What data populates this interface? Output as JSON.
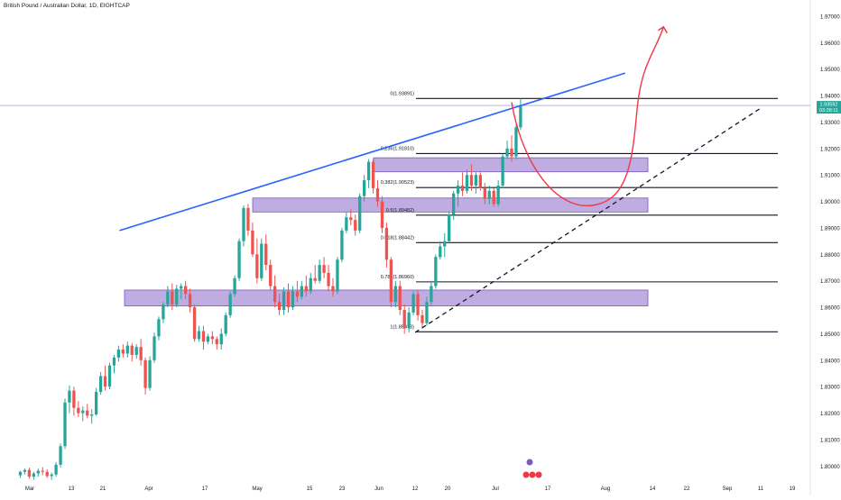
{
  "chart_data": {
    "type": "candlestick",
    "title": "British Pound / Australian Dollar, 1D, EIGHTCAP",
    "ylim": [
      1.795,
      1.975
    ],
    "y_ticks": [
      "1.80000",
      "1.81000",
      "1.82000",
      "1.83000",
      "1.84000",
      "1.85000",
      "1.86000",
      "1.87000",
      "1.88000",
      "1.89000",
      "1.90000",
      "1.91000",
      "1.92000",
      "1.93000",
      "1.94000",
      "1.95000",
      "1.96000",
      "1.97000"
    ],
    "x_ticks": [
      "Mar",
      "13",
      "21",
      "Apr",
      "17",
      "May",
      "15",
      "23",
      "Jun",
      "12",
      "20",
      "Jul",
      "17",
      "Aug",
      "14",
      "22",
      "Sep",
      "11",
      "19"
    ],
    "last_price": {
      "price": "1.93592",
      "countdown": "03:28:11"
    },
    "fibonacci_levels": [
      {
        "label": "0(1.93891)",
        "value": 1.93891
      },
      {
        "label": "0.236(1.91810)",
        "value": 1.9181
      },
      {
        "label": "0.382(1.90523)",
        "value": 1.90523
      },
      {
        "label": "0.5(1.89482)",
        "value": 1.89482
      },
      {
        "label": "0.618(1.88442)",
        "value": 1.88442
      },
      {
        "label": "0.786(1.86960)",
        "value": 1.8696
      },
      {
        "label": "1(1.85073)",
        "value": 1.85073
      }
    ],
    "zones": [
      {
        "from": 1.8605,
        "to": 1.8665
      },
      {
        "from": 1.896,
        "to": 1.9013
      },
      {
        "from": 1.9112,
        "to": 1.9165
      }
    ],
    "annotations": {
      "resistance_trendline": {
        "from": [
          1,
          1.889
        ],
        "to": [
          133,
          1.9485
        ]
      },
      "support_trendline": {
        "from": [
          87,
          1.8505
        ],
        "to": [
          166,
          1.9355
        ]
      },
      "projection_curve": [
        [
          110,
          1.9375
        ],
        [
          120,
          1.906
        ],
        [
          128,
          1.8985
        ],
        [
          137,
          1.92
        ],
        [
          144,
          1.966
        ]
      ],
      "target_arrowhead": [
        144,
        1.966
      ]
    },
    "candles": [
      [
        1.7965,
        1.7982,
        1.7955,
        1.7978
      ],
      [
        1.7978,
        1.7991,
        1.7968,
        1.7985
      ],
      [
        1.7985,
        1.7994,
        1.7952,
        1.796
      ],
      [
        1.796,
        1.7978,
        1.7948,
        1.7972
      ],
      [
        1.7972,
        1.799,
        1.796,
        1.7982
      ],
      [
        1.7982,
        1.7996,
        1.7965,
        1.7978
      ],
      [
        1.7978,
        1.7988,
        1.7955,
        1.7962
      ],
      [
        1.7962,
        1.7975,
        1.7948,
        1.7968
      ],
      [
        1.7968,
        1.8015,
        1.796,
        1.8005
      ],
      [
        1.8005,
        1.8085,
        1.7995,
        1.8075
      ],
      [
        1.8075,
        1.8255,
        1.8065,
        1.824
      ],
      [
        1.824,
        1.8305,
        1.82,
        1.8285
      ],
      [
        1.8285,
        1.83,
        1.819,
        1.822
      ],
      [
        1.822,
        1.8245,
        1.8185,
        1.82
      ],
      [
        1.82,
        1.8225,
        1.817,
        1.821
      ],
      [
        1.821,
        1.8235,
        1.818,
        1.819
      ],
      [
        1.819,
        1.8215,
        1.816,
        1.8195
      ],
      [
        1.8195,
        1.8295,
        1.819,
        1.828
      ],
      [
        1.828,
        1.8355,
        1.827,
        1.834
      ],
      [
        1.834,
        1.838,
        1.8285,
        1.83
      ],
      [
        1.83,
        1.839,
        1.829,
        1.838
      ],
      [
        1.838,
        1.842,
        1.835,
        1.841
      ],
      [
        1.841,
        1.8455,
        1.8395,
        1.844
      ],
      [
        1.844,
        1.846,
        1.841,
        1.8425
      ],
      [
        1.8425,
        1.847,
        1.841,
        1.8455
      ],
      [
        1.8455,
        1.8465,
        1.8395,
        1.842
      ],
      [
        1.842,
        1.846,
        1.8405,
        1.845
      ],
      [
        1.845,
        1.848,
        1.838,
        1.84
      ],
      [
        1.84,
        1.841,
        1.827,
        1.8295
      ],
      [
        1.8295,
        1.8415,
        1.8285,
        1.84
      ],
      [
        1.84,
        1.8505,
        1.839,
        1.849
      ],
      [
        1.849,
        1.8565,
        1.8475,
        1.8555
      ],
      [
        1.8555,
        1.862,
        1.854,
        1.861
      ],
      [
        1.861,
        1.868,
        1.86,
        1.866
      ],
      [
        1.866,
        1.869,
        1.859,
        1.861
      ],
      [
        1.861,
        1.8685,
        1.86,
        1.867
      ],
      [
        1.867,
        1.869,
        1.863,
        1.868
      ],
      [
        1.868,
        1.87,
        1.863,
        1.865
      ],
      [
        1.865,
        1.867,
        1.858,
        1.86
      ],
      [
        1.86,
        1.861,
        1.847,
        1.848
      ],
      [
        1.848,
        1.853,
        1.847,
        1.851
      ],
      [
        1.851,
        1.853,
        1.844,
        1.847
      ],
      [
        1.847,
        1.85,
        1.846,
        1.849
      ],
      [
        1.849,
        1.851,
        1.846,
        1.848
      ],
      [
        1.848,
        1.849,
        1.844,
        1.846
      ],
      [
        1.846,
        1.852,
        1.844,
        1.85
      ],
      [
        1.85,
        1.858,
        1.849,
        1.857
      ],
      [
        1.857,
        1.866,
        1.856,
        1.865
      ],
      [
        1.865,
        1.872,
        1.864,
        1.871
      ],
      [
        1.871,
        1.886,
        1.87,
        1.885
      ],
      [
        1.885,
        1.8985,
        1.883,
        1.8975
      ],
      [
        1.8975,
        1.899,
        1.887,
        1.889
      ],
      [
        1.889,
        1.892,
        1.879,
        1.88
      ],
      [
        1.88,
        1.886,
        1.869,
        1.871
      ],
      [
        1.871,
        1.886,
        1.87,
        1.884
      ],
      [
        1.884,
        1.8875,
        1.874,
        1.876
      ],
      [
        1.876,
        1.878,
        1.8665,
        1.868
      ],
      [
        1.868,
        1.872,
        1.86,
        1.862
      ],
      [
        1.862,
        1.865,
        1.857,
        1.859
      ],
      [
        1.859,
        1.8675,
        1.857,
        1.866
      ],
      [
        1.866,
        1.869,
        1.858,
        1.86
      ],
      [
        1.86,
        1.868,
        1.859,
        1.866
      ],
      [
        1.866,
        1.87,
        1.862,
        1.864
      ],
      [
        1.864,
        1.87,
        1.863,
        1.868
      ],
      [
        1.868,
        1.872,
        1.864,
        1.866
      ],
      [
        1.866,
        1.873,
        1.865,
        1.871
      ],
      [
        1.871,
        1.876,
        1.869,
        1.87
      ],
      [
        1.87,
        1.878,
        1.869,
        1.876
      ],
      [
        1.876,
        1.879,
        1.871,
        1.873
      ],
      [
        1.873,
        1.876,
        1.866,
        1.868
      ],
      [
        1.868,
        1.871,
        1.864,
        1.866
      ],
      [
        1.866,
        1.879,
        1.865,
        1.878
      ],
      [
        1.878,
        1.89,
        1.877,
        1.889
      ],
      [
        1.889,
        1.896,
        1.888,
        1.894
      ],
      [
        1.894,
        1.897,
        1.891,
        1.893
      ],
      [
        1.893,
        1.895,
        1.887,
        1.889
      ],
      [
        1.889,
        1.903,
        1.888,
        1.902
      ],
      [
        1.902,
        1.91,
        1.9,
        1.908
      ],
      [
        1.908,
        1.916,
        1.905,
        1.915
      ],
      [
        1.915,
        1.916,
        1.903,
        1.905
      ],
      [
        1.905,
        1.908,
        1.898,
        1.9
      ],
      [
        1.9,
        1.902,
        1.888,
        1.89
      ],
      [
        1.89,
        1.892,
        1.875,
        1.878
      ],
      [
        1.878,
        1.879,
        1.86,
        1.862
      ],
      [
        1.862,
        1.87,
        1.86,
        1.868
      ],
      [
        1.868,
        1.87,
        1.857,
        1.859
      ],
      [
        1.859,
        1.861,
        1.85,
        1.852
      ],
      [
        1.852,
        1.86,
        1.8505,
        1.858
      ],
      [
        1.858,
        1.866,
        1.857,
        1.865
      ],
      [
        1.865,
        1.8665,
        1.855,
        1.857
      ],
      [
        1.857,
        1.859,
        1.852,
        1.854
      ],
      [
        1.854,
        1.864,
        1.853,
        1.862
      ],
      [
        1.862,
        1.87,
        1.861,
        1.868
      ],
      [
        1.868,
        1.88,
        1.867,
        1.879
      ],
      [
        1.879,
        1.885,
        1.878,
        1.883
      ],
      [
        1.883,
        1.888,
        1.879,
        1.885
      ],
      [
        1.885,
        1.896,
        1.884,
        1.895
      ],
      [
        1.895,
        1.904,
        1.893,
        1.903
      ],
      [
        1.903,
        1.908,
        1.898,
        1.906
      ],
      [
        1.906,
        1.911,
        1.902,
        1.904
      ],
      [
        1.904,
        1.912,
        1.903,
        1.91
      ],
      [
        1.91,
        1.914,
        1.904,
        1.906
      ],
      [
        1.906,
        1.911,
        1.903,
        1.91
      ],
      [
        1.91,
        1.911,
        1.904,
        1.905
      ],
      [
        1.905,
        1.907,
        1.899,
        1.901
      ],
      [
        1.901,
        1.906,
        1.899,
        1.904
      ],
      [
        1.904,
        1.905,
        1.898,
        1.899
      ],
      [
        1.899,
        1.908,
        1.898,
        1.906
      ],
      [
        1.906,
        1.918,
        1.905,
        1.917
      ],
      [
        1.917,
        1.923,
        1.916,
        1.92
      ],
      [
        1.92,
        1.925,
        1.915,
        1.917
      ],
      [
        1.917,
        1.929,
        1.916,
        1.928
      ],
      [
        1.928,
        1.9389,
        1.927,
        1.9359
      ]
    ]
  }
}
